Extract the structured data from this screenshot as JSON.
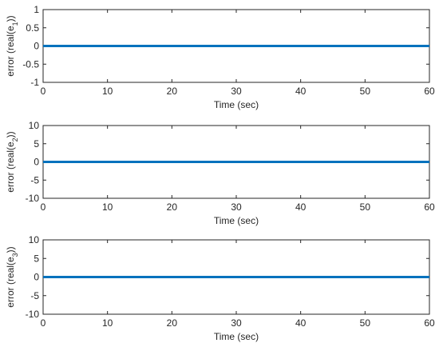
{
  "chart_data": [
    {
      "type": "line",
      "title": "",
      "xlabel": "Time (sec)",
      "ylabel": {
        "prefix": "error (real(e",
        "subscript": "1",
        "suffix": "))"
      },
      "xlim": [
        0,
        60
      ],
      "ylim": [
        -1,
        1
      ],
      "xticks": [
        0,
        10,
        20,
        30,
        40,
        50,
        60
      ],
      "yticks": [
        -1,
        -0.5,
        0,
        0.5,
        1
      ],
      "grid": false,
      "series": [
        {
          "color": "#0072BD",
          "x": [
            0,
            60
          ],
          "y": [
            0,
            0
          ]
        }
      ]
    },
    {
      "type": "line",
      "title": "",
      "xlabel": "Time (sec)",
      "ylabel": {
        "prefix": "error (real(e",
        "subscript": "2",
        "suffix": "))"
      },
      "xlim": [
        0,
        60
      ],
      "ylim": [
        -10,
        10
      ],
      "xticks": [
        0,
        10,
        20,
        30,
        40,
        50,
        60
      ],
      "yticks": [
        -10,
        -5,
        0,
        5,
        10
      ],
      "grid": false,
      "series": [
        {
          "color": "#0072BD",
          "x": [
            0,
            60
          ],
          "y": [
            0,
            0
          ]
        }
      ]
    },
    {
      "type": "line",
      "title": "",
      "xlabel": "Time (sec)",
      "ylabel": {
        "prefix": "error (real(e",
        "subscript": "3",
        "suffix": "))"
      },
      "xlim": [
        0,
        60
      ],
      "ylim": [
        -10,
        10
      ],
      "xticks": [
        0,
        10,
        20,
        30,
        40,
        50,
        60
      ],
      "yticks": [
        -10,
        -5,
        0,
        5,
        10
      ],
      "grid": false,
      "series": [
        {
          "color": "#0072BD",
          "x": [
            0,
            60
          ],
          "y": [
            0,
            0
          ]
        }
      ]
    }
  ]
}
